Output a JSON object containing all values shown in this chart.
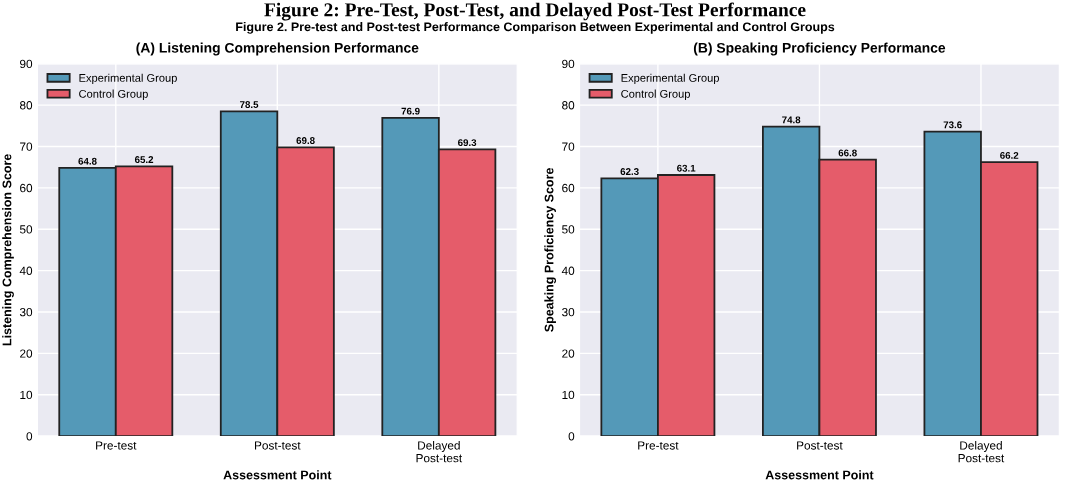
{
  "chart_data": [
    {
      "type": "bar",
      "title": "(A) Listening Comprehension Performance",
      "xlabel": "Assessment Point",
      "ylabel": "Listening Comprehension Score",
      "annotations": [
        "Figure 2: Pre-Test, Post-Test, and Delayed Post-Test Performance",
        "Figure 2. Pre-test and Post-test Performance Comparison Between Experimental and Control Groups"
      ],
      "categories": [
        "Pre-test",
        "Post-test",
        "Delayed\nPost-test"
      ],
      "series": [
        {
          "name": "Experimental Group",
          "color": "#5499b8",
          "values": [
            64.8,
            78.5,
            76.9
          ]
        },
        {
          "name": "Control Group",
          "color": "#e55c6a",
          "values": [
            65.2,
            69.8,
            69.3
          ]
        }
      ],
      "ylim": [
        0,
        90
      ],
      "yticks": [
        0,
        10,
        20,
        30,
        40,
        50,
        60,
        70,
        80,
        90
      ],
      "grid": true,
      "legend": "top left",
      "data_labels": true
    },
    {
      "type": "bar",
      "title": "(B) Speaking Proficiency Performance",
      "xlabel": "Assessment Point",
      "ylabel": "Speaking Proficiency Score",
      "categories": [
        "Pre-test",
        "Post-test",
        "Delayed\nPost-test"
      ],
      "series": [
        {
          "name": "Experimental Group",
          "color": "#5499b8",
          "values": [
            62.3,
            74.8,
            73.6
          ]
        },
        {
          "name": "Control Group",
          "color": "#e55c6a",
          "values": [
            63.1,
            66.8,
            66.2
          ]
        }
      ],
      "ylim": [
        0,
        90
      ],
      "yticks": [
        0,
        10,
        20,
        30,
        40,
        50,
        60,
        70,
        80,
        90
      ],
      "grid": true,
      "legend": "top left",
      "data_labels": true
    }
  ]
}
